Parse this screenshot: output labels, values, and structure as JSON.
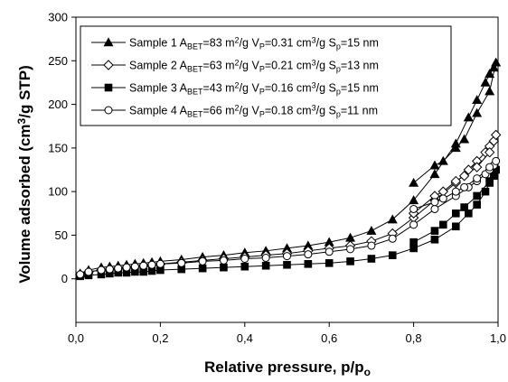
{
  "chart_data": {
    "type": "line",
    "title": "",
    "xlabel": "Relative pressure, p/p",
    "xlabel_sub": "o",
    "ylabel_parts": [
      "Volume adsorbed (cm",
      "3",
      "/g STP)"
    ],
    "xlim": [
      0.0,
      1.0
    ],
    "ylim": [
      -50,
      300
    ],
    "xticks": [
      0.0,
      0.2,
      0.4,
      0.6,
      0.8,
      1.0
    ],
    "xtick_labels": [
      "0,0",
      "0,2",
      "0,4",
      "0,6",
      "0,8",
      "1,0"
    ],
    "yticks": [
      0,
      50,
      100,
      150,
      200,
      250,
      300
    ],
    "ytick_labels": [
      "0",
      "50",
      "100",
      "150",
      "200",
      "250",
      "300"
    ],
    "grid": false,
    "legend_position": "top-right",
    "series": [
      {
        "name": "Sample 1",
        "name_parts": [
          "Sample 1  A",
          "BET",
          "=83 m",
          "2",
          "/g  V",
          "P",
          "=0.31 cm",
          "3",
          "/g  S",
          "p",
          "=15 nm"
        ],
        "marker": "triangle",
        "x_ads": [
          0.01,
          0.03,
          0.06,
          0.08,
          0.1,
          0.12,
          0.14,
          0.16,
          0.18,
          0.2,
          0.25,
          0.3,
          0.35,
          0.4,
          0.45,
          0.5,
          0.55,
          0.6,
          0.65,
          0.7,
          0.75,
          0.8,
          0.85,
          0.9,
          0.93,
          0.95,
          0.97,
          0.98,
          0.99,
          0.995
        ],
        "y_ads": [
          6,
          10,
          13,
          14,
          15,
          16,
          17,
          18,
          19,
          20,
          22,
          25,
          27,
          30,
          32,
          35,
          38,
          42,
          47,
          55,
          68,
          90,
          120,
          155,
          185,
          205,
          225,
          235,
          242,
          248
        ],
        "x_des": [
          0.98,
          0.95,
          0.92,
          0.9,
          0.87,
          0.85,
          0.8
        ],
        "y_des": [
          215,
          190,
          160,
          150,
          135,
          130,
          110
        ]
      },
      {
        "name": "Sample 2",
        "name_parts": [
          "Sample 2  A",
          "BET",
          "=63 m",
          "2",
          "/g  V",
          "P",
          "=0.21 cm",
          "3",
          "/g  S",
          "p",
          "=13 nm"
        ],
        "marker": "diamond-open",
        "x_ads": [
          0.01,
          0.03,
          0.06,
          0.08,
          0.1,
          0.12,
          0.14,
          0.16,
          0.18,
          0.2,
          0.25,
          0.3,
          0.35,
          0.4,
          0.45,
          0.5,
          0.55,
          0.6,
          0.65,
          0.7,
          0.75,
          0.8,
          0.85,
          0.9,
          0.93,
          0.95,
          0.97,
          0.98,
          0.99,
          0.995
        ],
        "y_ads": [
          5,
          8,
          10,
          11,
          12,
          13,
          14,
          15,
          16,
          17,
          19,
          21,
          23,
          25,
          27,
          29,
          32,
          35,
          38,
          43,
          52,
          70,
          90,
          110,
          125,
          135,
          145,
          152,
          158,
          165
        ],
        "x_des": [
          0.98,
          0.95,
          0.92,
          0.9,
          0.87,
          0.85,
          0.8
        ],
        "y_des": [
          145,
          128,
          118,
          112,
          100,
          95,
          75
        ]
      },
      {
        "name": "Sample 3",
        "name_parts": [
          "Sample 3  A",
          "BET",
          "=43 m",
          "2",
          "/g  V",
          "P",
          "=0.16 cm",
          "3",
          "/g  S",
          "p",
          "=15 nm"
        ],
        "marker": "square",
        "x_ads": [
          0.01,
          0.03,
          0.06,
          0.08,
          0.1,
          0.12,
          0.14,
          0.16,
          0.18,
          0.2,
          0.25,
          0.3,
          0.35,
          0.4,
          0.45,
          0.5,
          0.55,
          0.6,
          0.65,
          0.7,
          0.75,
          0.8,
          0.85,
          0.9,
          0.93,
          0.95,
          0.97,
          0.98,
          0.99,
          0.995
        ],
        "y_ads": [
          3,
          4,
          5,
          6,
          7,
          7,
          8,
          8,
          9,
          10,
          11,
          12,
          13,
          14,
          15,
          16,
          17,
          18,
          20,
          23,
          27,
          35,
          45,
          60,
          75,
          85,
          100,
          110,
          118,
          125
        ],
        "x_des": [
          0.98,
          0.95,
          0.92,
          0.9,
          0.87,
          0.85,
          0.8
        ],
        "y_des": [
          112,
          95,
          82,
          75,
          62,
          55,
          42
        ]
      },
      {
        "name": "Sample 4",
        "name_parts": [
          "Sample 4  A",
          "BET",
          "=66 m",
          "2",
          "/g  V",
          "P",
          "=0.18 cm",
          "3",
          "/g  S",
          "p",
          "=11 nm"
        ],
        "marker": "circle-open",
        "x_ads": [
          0.01,
          0.03,
          0.06,
          0.08,
          0.1,
          0.12,
          0.14,
          0.16,
          0.18,
          0.2,
          0.25,
          0.3,
          0.35,
          0.4,
          0.45,
          0.5,
          0.55,
          0.6,
          0.65,
          0.7,
          0.75,
          0.8,
          0.85,
          0.9,
          0.93,
          0.95,
          0.97,
          0.98,
          0.99,
          0.995
        ],
        "y_ads": [
          5,
          8,
          10,
          11,
          12,
          13,
          14,
          15,
          16,
          17,
          18,
          20,
          21,
          23,
          24,
          26,
          28,
          31,
          34,
          38,
          46,
          62,
          80,
          95,
          105,
          112,
          120,
          125,
          130,
          135
        ],
        "x_des": [
          0.98,
          0.95,
          0.92,
          0.9,
          0.87,
          0.85,
          0.8
        ],
        "y_des": [
          128,
          115,
          105,
          100,
          92,
          88,
          80
        ]
      }
    ]
  }
}
